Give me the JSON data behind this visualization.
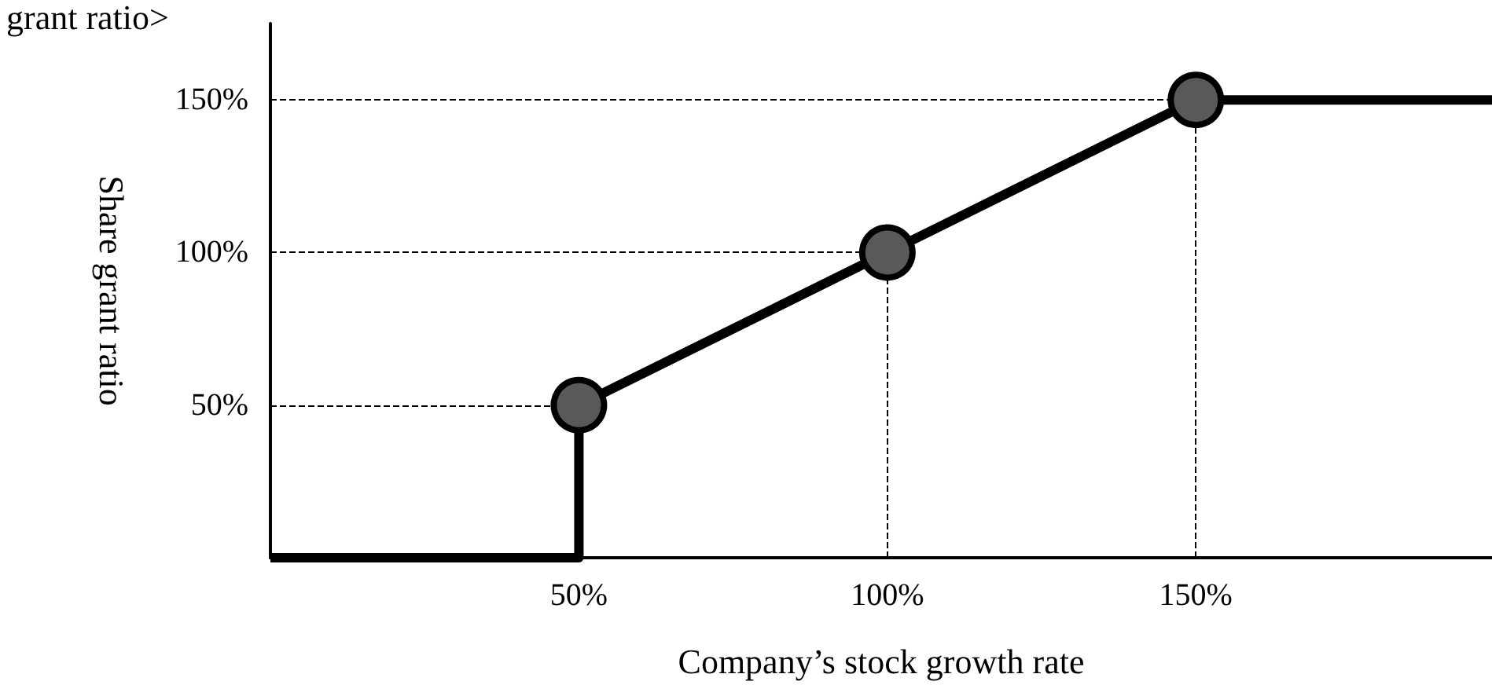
{
  "chart_data": {
    "type": "line",
    "xlabel": "Company’s stock growth rate",
    "ylabel": "Share grant ratio",
    "annotations": [
      "grant ratio>"
    ],
    "xlim": [
      0,
      198
    ],
    "ylim": [
      0,
      175
    ],
    "xticks": [
      {
        "value": 50,
        "label": "50%"
      },
      {
        "value": 100,
        "label": "100%"
      },
      {
        "value": 150,
        "label": "150%"
      }
    ],
    "yticks": [
      {
        "value": 50,
        "label": "50%"
      },
      {
        "value": 100,
        "label": "100%"
      },
      {
        "value": 150,
        "label": "150%"
      }
    ],
    "grid": false,
    "series": [
      {
        "color": "#000000",
        "marker": "none",
        "line_style": "solid",
        "x": [
          0,
          50,
          50,
          100,
          150,
          198
        ],
        "values": [
          0,
          0,
          50,
          100,
          150,
          150
        ]
      },
      {
        "type": "scatter",
        "color": "#595959",
        "marker": "circle",
        "x": [
          50,
          100,
          150
        ],
        "values": [
          50,
          100,
          150
        ]
      }
    ],
    "ref_lines": [
      {
        "axis": "y",
        "value": 50,
        "line_style": "dashed",
        "color": "#000000"
      },
      {
        "axis": "y",
        "value": 100,
        "line_style": "dashed",
        "color": "#000000"
      },
      {
        "axis": "y",
        "value": 150,
        "line_style": "dashed",
        "color": "#000000"
      },
      {
        "axis": "x",
        "value": 100,
        "line_style": "dashed",
        "color": "#000000"
      },
      {
        "axis": "x",
        "value": 150,
        "line_style": "dashed",
        "color": "#000000"
      }
    ]
  }
}
